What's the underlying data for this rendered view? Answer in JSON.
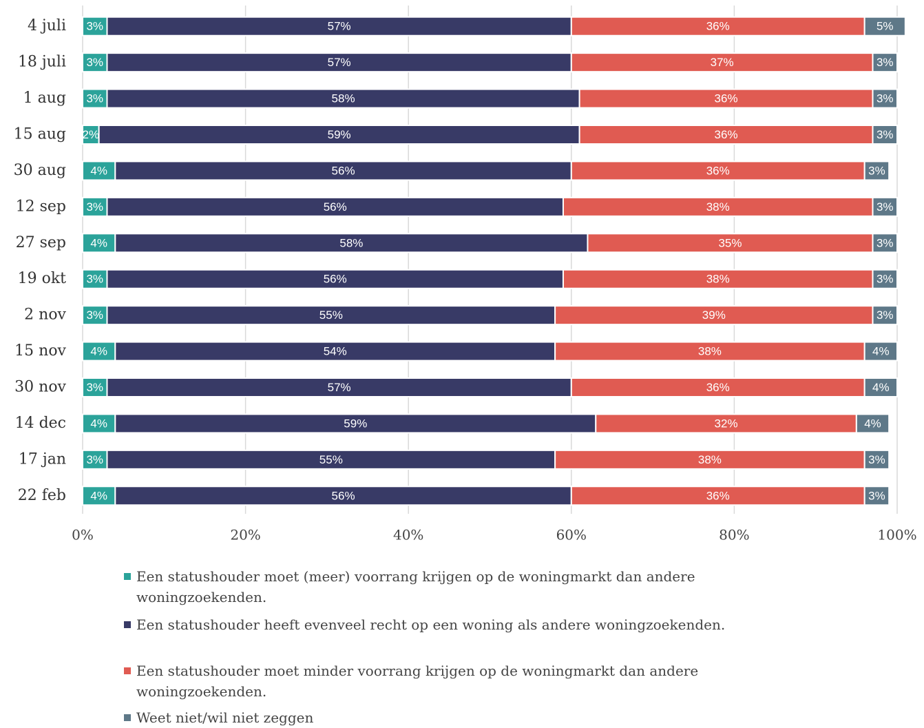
{
  "chart_data": {
    "type": "stacked-bar-horizontal",
    "categories": [
      "4 juli",
      "18 juli",
      "1 aug",
      "15 aug",
      "30 aug",
      "12 sep",
      "27 sep",
      "19 okt",
      "2 nov",
      "15 nov",
      "30 nov",
      "14 dec",
      "17 jan",
      "22 feb"
    ],
    "series": [
      {
        "name": "Een statushouder moet (meer) voorrang krijgen op de woningmarkt dan andere woningzoekenden.",
        "color": "#2ba39a",
        "values": [
          3,
          3,
          3,
          2,
          4,
          3,
          4,
          3,
          3,
          4,
          3,
          4,
          3,
          4
        ],
        "value_labels": [
          "3%",
          "3%",
          "3%",
          "2%",
          "4%",
          "3%",
          "4%",
          "3%",
          "3%",
          "4%",
          "3%",
          "4%",
          "3%",
          "4%"
        ]
      },
      {
        "name": "Een statushouder heeft evenveel recht op een woning als andere woningzoekenden.",
        "color": "#383a66",
        "values": [
          57,
          57,
          58,
          59,
          56,
          56,
          58,
          56,
          55,
          54,
          57,
          59,
          55,
          56
        ],
        "value_labels": [
          "57%",
          "57%",
          "58%",
          "59%",
          "56%",
          "56%",
          "58%",
          "56%",
          "55%",
          "54%",
          "57%",
          "59%",
          "55%",
          "56%"
        ]
      },
      {
        "name": "Een statushouder moet minder voorrang krijgen op de woningmarkt dan andere woningzoekenden.",
        "color": "#e05b52",
        "values": [
          36,
          37,
          36,
          36,
          36,
          38,
          35,
          38,
          39,
          38,
          36,
          32,
          38,
          36
        ],
        "value_labels": [
          "36%",
          "37%",
          "36%",
          "36%",
          "36%",
          "38%",
          "35%",
          "38%",
          "39%",
          "38%",
          "36%",
          "32%",
          "38%",
          "36%"
        ]
      },
      {
        "name": "Weet niet/wil niet zeggen",
        "color": "#5e7888",
        "values": [
          5,
          3,
          3,
          3,
          3,
          3,
          3,
          3,
          3,
          4,
          4,
          4,
          3,
          3
        ],
        "value_labels": [
          "5%",
          "3%",
          "3%",
          "3%",
          "3%",
          "3%",
          "3%",
          "3%",
          "3%",
          "4%",
          "4%",
          "4%",
          "3%",
          "3%"
        ]
      }
    ],
    "xlim": [
      0,
      100
    ],
    "xticks": [
      {
        "value": 0,
        "label": "0%"
      },
      {
        "value": 20,
        "label": "20%"
      },
      {
        "value": 40,
        "label": "40%"
      },
      {
        "value": 60,
        "label": "60%"
      },
      {
        "value": 80,
        "label": "80%"
      },
      {
        "value": 100,
        "label": "100%"
      }
    ],
    "grid": true
  }
}
